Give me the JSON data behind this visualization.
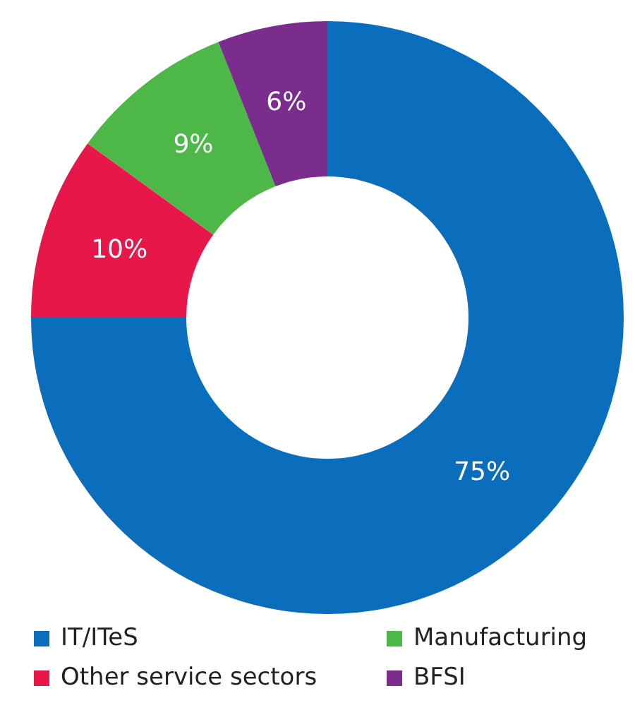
{
  "chart_data": {
    "type": "donut",
    "categories": [
      "IT/ITeS",
      "Other service sectors",
      "Manufacturing",
      "BFSI"
    ],
    "values": [
      75,
      10,
      9,
      6
    ],
    "colors": [
      "#0a6ebd",
      "#e8174a",
      "#4db848",
      "#7b2d8e"
    ],
    "value_labels": [
      "75%",
      "10%",
      "9%",
      "6%"
    ],
    "legend": "bottom"
  }
}
